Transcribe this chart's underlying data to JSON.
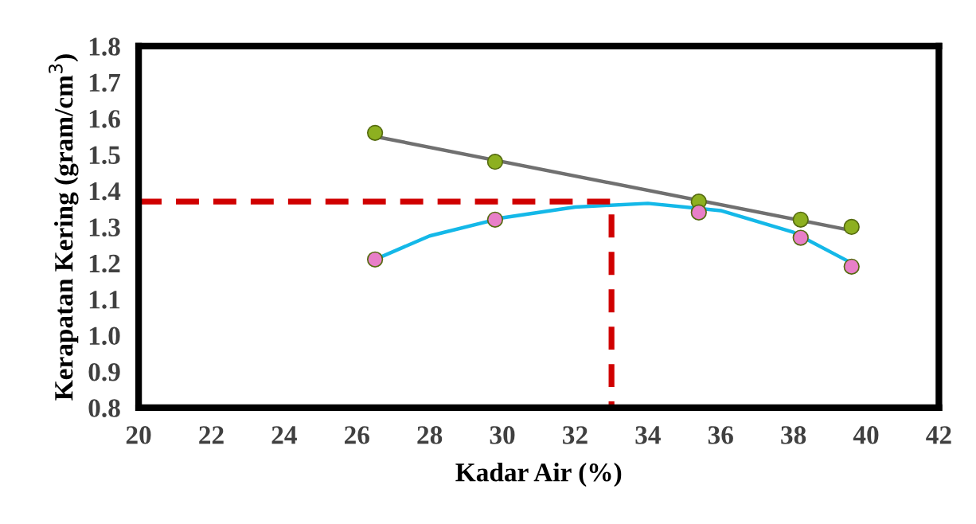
{
  "chart_data": {
    "type": "scatter",
    "xlabel": "Kadar Air (%)",
    "ylabel": "Kerapatan Kering (gram/cm$^{3}$)",
    "xlim": [
      20,
      42
    ],
    "xticks": [
      20,
      22,
      24,
      26,
      28,
      30,
      32,
      34,
      36,
      38,
      40,
      42
    ],
    "ylim": [
      0.8,
      1.8
    ],
    "yticks": [
      {
        "value": 0.8,
        "label": "0.8"
      },
      {
        "value": 0.9,
        "label": "0.9"
      },
      {
        "value": 1.0,
        "label": "1.0"
      },
      {
        "value": 1.1,
        "label": "1.1"
      },
      {
        "value": 1.2,
        "label": "1.2"
      },
      {
        "value": 1.3,
        "label": "1.3"
      },
      {
        "value": 1.4,
        "label": "1.4"
      },
      {
        "value": 1.5,
        "label": "1.5"
      },
      {
        "value": 1.6,
        "label": "1.6"
      },
      {
        "value": 1.7,
        "label": "1.7"
      },
      {
        "value": 1.8,
        "label": "1.8"
      }
    ],
    "grid": false,
    "legend": false,
    "marker": "circle",
    "series": [
      {
        "type": "line",
        "color": "#707070",
        "x": [
          26.5,
          39.6
        ],
        "values": [
          1.55,
          1.29
        ],
        "marker": "none",
        "line_style": "solid"
      },
      {
        "type": "line",
        "color": "#14b8e8",
        "x": [
          26.5,
          28,
          30,
          32,
          34,
          36,
          38,
          39.6
        ],
        "values": [
          1.21,
          1.275,
          1.325,
          1.355,
          1.365,
          1.345,
          1.285,
          1.2
        ],
        "marker": "none",
        "line_style": "solid"
      },
      {
        "type": "line",
        "color": "#d00000",
        "x": [
          20,
          33,
          33
        ],
        "values": [
          1.37,
          1.37,
          0.8
        ],
        "marker": "none",
        "line_style": "dashed"
      },
      {
        "color": "#8db020",
        "x": [
          26.5,
          29.8,
          35.4,
          38.2,
          39.6
        ],
        "values": [
          1.56,
          1.48,
          1.37,
          1.32,
          1.3
        ]
      },
      {
        "color": "#e87fc8",
        "x": [
          26.5,
          29.8,
          35.4,
          38.2,
          39.6
        ],
        "values": [
          1.21,
          1.32,
          1.34,
          1.27,
          1.19
        ]
      }
    ]
  }
}
